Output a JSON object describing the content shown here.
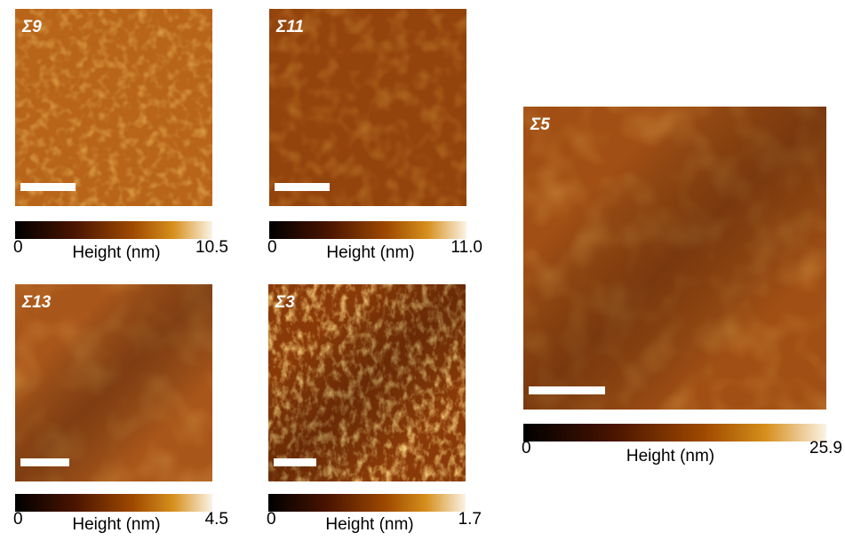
{
  "panels": [
    {
      "label": "Σ9",
      "colorbar": {
        "min": "0",
        "title": "Height (nm)",
        "max": "10.5"
      }
    },
    {
      "label": "Σ11",
      "colorbar": {
        "min": "0",
        "title": "Height (nm)",
        "max": "11.0"
      }
    },
    {
      "label": "Σ13",
      "colorbar": {
        "min": "0",
        "title": "Height (nm)",
        "max": "4.5"
      }
    },
    {
      "label": "Σ3",
      "colorbar": {
        "min": "0",
        "title": "Height (nm)",
        "max": "1.7"
      }
    },
    {
      "label": "Σ5",
      "colorbar": {
        "min": "0",
        "title": "Height (nm)",
        "max": "25.9"
      }
    }
  ]
}
